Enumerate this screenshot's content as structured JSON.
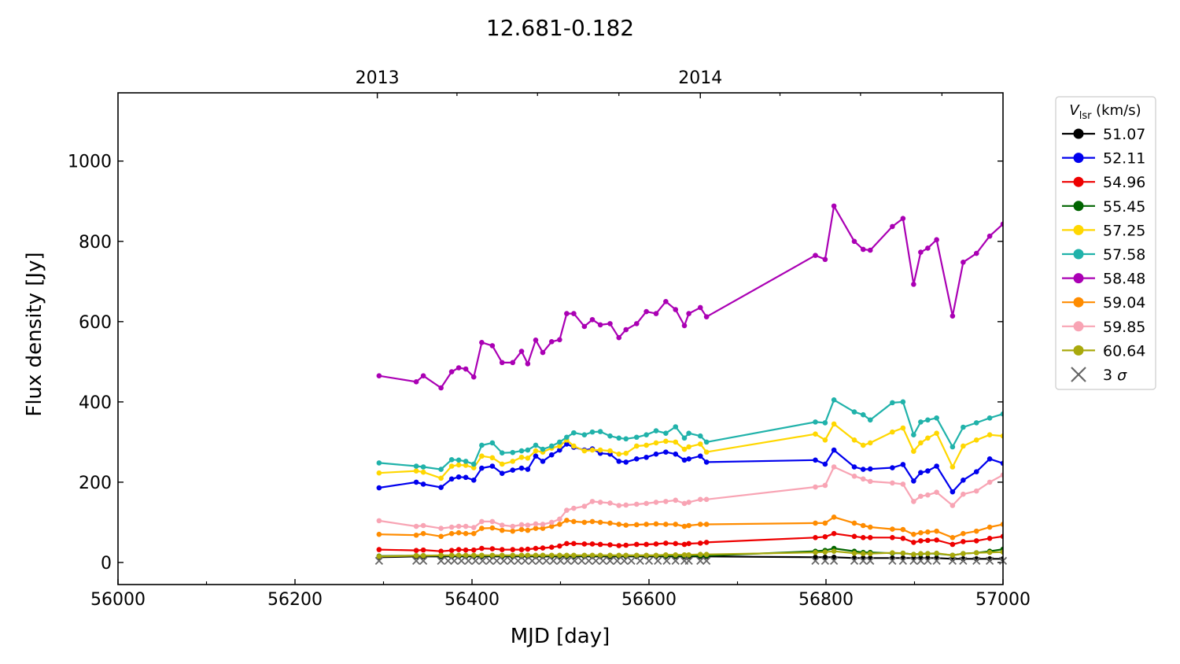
{
  "chart_data": {
    "type": "line",
    "title": "12.681-0.182",
    "xlabel": "MJD [day]",
    "ylabel": "Flux density [Jy]",
    "xlim": [
      56000,
      57000
    ],
    "ylim": [
      -55,
      1170
    ],
    "x_ticks": [
      56000,
      56200,
      56400,
      56600,
      56800,
      57000
    ],
    "x_minor_ticks": [
      56100,
      56300,
      56500,
      56700,
      56900
    ],
    "y_ticks": [
      0,
      200,
      400,
      600,
      800,
      1000
    ],
    "top_axis": {
      "ticks": [
        {
          "x": 56293,
          "label": "2013"
        },
        {
          "x": 56658,
          "label": "2014"
        }
      ],
      "minor_ticks": [
        56383,
        56474,
        56566,
        56748,
        56839,
        56931
      ]
    },
    "legend": {
      "title_main": "V",
      "title_sub": "lsr",
      "title_unit": " (km/s)",
      "placement": "outside-right"
    },
    "x": [
      56295,
      56337,
      56345,
      56365,
      56377,
      56385,
      56393,
      56402,
      56411,
      56423,
      56434,
      56446,
      56456,
      56463,
      56472,
      56480,
      56490,
      56499,
      56507,
      56515,
      56527,
      56536,
      56545,
      56556,
      56566,
      56574,
      56586,
      56597,
      56608,
      56619,
      56630,
      56640,
      56645,
      56658,
      56665,
      56788,
      56799,
      56809,
      56832,
      56842,
      56850,
      56875,
      56887,
      56899,
      56907,
      56915,
      56925,
      56943,
      56955,
      56970,
      56985,
      57000
    ],
    "series": [
      {
        "name": "51.07",
        "color": "#000000",
        "values": [
          13,
          15,
          15,
          15,
          15,
          15,
          15,
          15,
          15,
          15,
          15,
          15,
          15,
          15,
          15,
          15,
          15,
          15,
          15,
          15,
          15,
          15,
          15,
          15,
          15,
          15,
          15,
          15,
          15,
          15,
          15,
          15,
          15,
          15,
          15,
          13,
          13,
          13,
          11,
          11,
          11,
          11,
          11,
          11,
          11,
          11,
          11,
          9,
          9,
          9,
          9,
          9
        ]
      },
      {
        "name": "52.11",
        "color": "#0000ee",
        "values": [
          186,
          200,
          195,
          187,
          208,
          213,
          212,
          205,
          235,
          240,
          222,
          230,
          235,
          232,
          265,
          252,
          268,
          280,
          295,
          287,
          280,
          283,
          272,
          270,
          252,
          250,
          258,
          262,
          270,
          275,
          270,
          255,
          258,
          265,
          250,
          255,
          245,
          280,
          238,
          232,
          233,
          236,
          244,
          203,
          224,
          228,
          240,
          176,
          205,
          226,
          258,
          247
        ]
      },
      {
        "name": "54.96",
        "color": "#ee0000",
        "values": [
          32,
          30,
          31,
          28,
          30,
          32,
          31,
          31,
          35,
          34,
          32,
          32,
          32,
          33,
          35,
          36,
          38,
          41,
          47,
          47,
          46,
          46,
          45,
          44,
          42,
          43,
          45,
          45,
          46,
          48,
          47,
          45,
          47,
          48,
          50,
          62,
          64,
          72,
          65,
          62,
          62,
          62,
          60,
          50,
          54,
          55,
          56,
          45,
          52,
          54,
          60,
          65
        ]
      },
      {
        "name": "55.45",
        "color": "#006400",
        "values": [
          16,
          17,
          17,
          17,
          17,
          17,
          17,
          17,
          17,
          17,
          17,
          17,
          17,
          17,
          17,
          17,
          17,
          17,
          17,
          17,
          17,
          17,
          17,
          17,
          17,
          17,
          17,
          17,
          17,
          17,
          17,
          17,
          17,
          17,
          17,
          28,
          30,
          35,
          28,
          25,
          25,
          23,
          23,
          20,
          21,
          22,
          22,
          18,
          22,
          24,
          28,
          33
        ]
      },
      {
        "name": "57.25",
        "color": "#ffd700",
        "values": [
          223,
          228,
          225,
          210,
          240,
          243,
          242,
          236,
          265,
          261,
          245,
          252,
          262,
          260,
          278,
          275,
          285,
          290,
          305,
          290,
          278,
          280,
          280,
          278,
          270,
          272,
          290,
          292,
          298,
          302,
          300,
          282,
          288,
          295,
          275,
          320,
          305,
          345,
          305,
          292,
          298,
          325,
          335,
          277,
          298,
          310,
          322,
          238,
          290,
          305,
          318,
          315
        ]
      },
      {
        "name": "57.58",
        "color": "#20b2aa",
        "values": [
          248,
          240,
          238,
          232,
          256,
          255,
          252,
          245,
          292,
          298,
          273,
          274,
          278,
          280,
          292,
          282,
          290,
          300,
          312,
          323,
          318,
          325,
          326,
          315,
          310,
          308,
          312,
          318,
          328,
          322,
          338,
          310,
          322,
          315,
          300,
          350,
          348,
          405,
          375,
          368,
          355,
          398,
          400,
          318,
          350,
          355,
          360,
          288,
          337,
          348,
          360,
          370
        ]
      },
      {
        "name": "58.48",
        "color": "#aa00b4",
        "values": [
          465,
          450,
          465,
          435,
          475,
          485,
          482,
          462,
          548,
          540,
          498,
          498,
          526,
          495,
          554,
          523,
          550,
          555,
          620,
          620,
          588,
          605,
          592,
          595,
          560,
          580,
          595,
          625,
          620,
          650,
          630,
          590,
          620,
          635,
          612,
          765,
          755,
          888,
          800,
          780,
          778,
          837,
          857,
          693,
          773,
          783,
          804,
          614,
          748,
          770,
          813,
          843
        ]
      },
      {
        "name": "59.04",
        "color": "#ff8c00",
        "values": [
          70,
          68,
          72,
          65,
          72,
          74,
          72,
          72,
          85,
          86,
          80,
          78,
          82,
          80,
          85,
          85,
          90,
          95,
          105,
          102,
          100,
          102,
          100,
          98,
          95,
          93,
          94,
          95,
          96,
          95,
          95,
          90,
          92,
          95,
          95,
          98,
          98,
          113,
          98,
          92,
          88,
          83,
          82,
          70,
          74,
          76,
          78,
          62,
          72,
          78,
          88,
          95
        ]
      },
      {
        "name": "59.85",
        "color": "#f8a4b4",
        "values": [
          104,
          90,
          92,
          85,
          88,
          90,
          90,
          87,
          102,
          102,
          93,
          90,
          94,
          93,
          96,
          95,
          100,
          108,
          130,
          135,
          140,
          152,
          150,
          148,
          142,
          143,
          145,
          147,
          150,
          152,
          155,
          147,
          150,
          157,
          157,
          188,
          192,
          238,
          215,
          208,
          202,
          198,
          195,
          152,
          165,
          168,
          175,
          142,
          170,
          178,
          200,
          218
        ]
      },
      {
        "name": "60.64",
        "color": "#a9a90c",
        "values": [
          15,
          17,
          17,
          18,
          18,
          18,
          18,
          18,
          18,
          18,
          18,
          18,
          18,
          18,
          18,
          18,
          18,
          18,
          18,
          18,
          18,
          18,
          18,
          18,
          18,
          18,
          18,
          18,
          18,
          19,
          19,
          19,
          19,
          20,
          20,
          25,
          26,
          28,
          23,
          22,
          22,
          24,
          23,
          20,
          22,
          22,
          23,
          18,
          22,
          24,
          25,
          26
        ]
      }
    ],
    "sigma_marker": {
      "name": "3 σ",
      "name_main": "3",
      "name_sym": "σ",
      "color": "#666666",
      "y": 4,
      "x": [
        56295,
        56337,
        56345,
        56365,
        56373,
        56380,
        56388,
        56396,
        56404,
        56412,
        56420,
        56428,
        56436,
        56444,
        56452,
        56460,
        56468,
        56476,
        56484,
        56492,
        56500,
        56508,
        56516,
        56524,
        56532,
        56540,
        56548,
        56556,
        56564,
        56572,
        56580,
        56590,
        56600,
        56610,
        56620,
        56630,
        56640,
        56645,
        56658,
        56665,
        56788,
        56799,
        56809,
        56832,
        56842,
        56850,
        56875,
        56887,
        56899,
        56907,
        56915,
        56925,
        56943,
        56955,
        56970,
        56985,
        57000
      ]
    }
  }
}
